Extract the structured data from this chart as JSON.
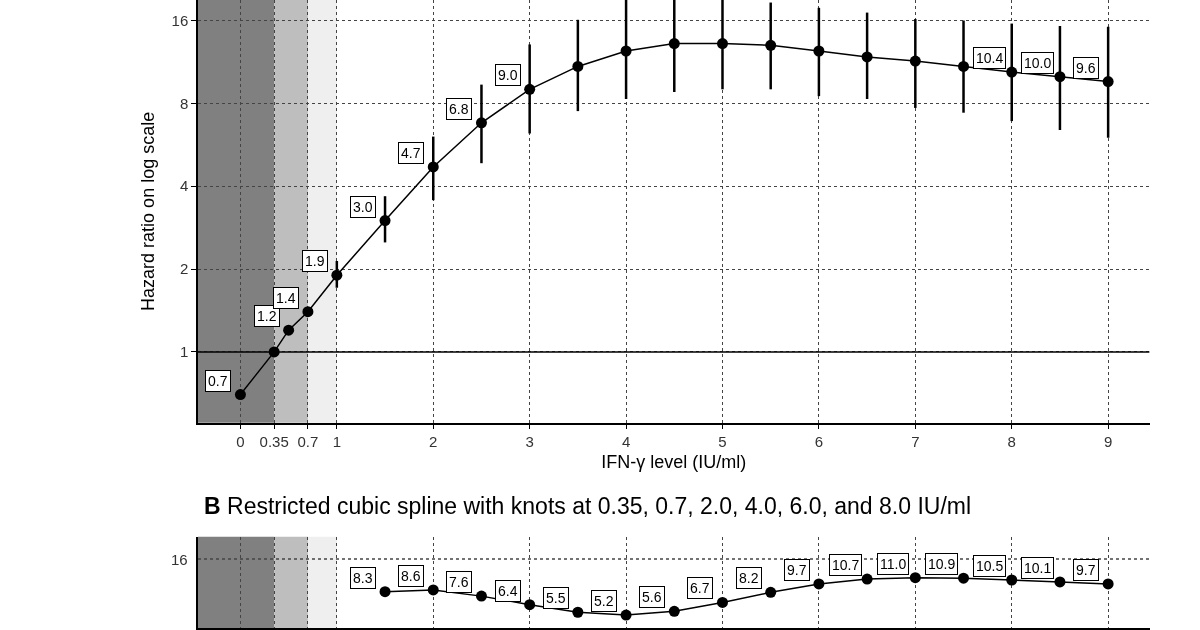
{
  "chart_data": [
    {
      "type": "line",
      "xlabel": "IFN-γ level (IU/ml)",
      "ylabel": "Hazard ratio on log scale",
      "x": [
        0,
        0.35,
        0.5,
        0.7,
        1,
        1.5,
        2,
        2.5,
        3,
        3.5,
        4,
        4.5,
        5,
        5.5,
        6,
        6.5,
        7,
        7.5,
        8,
        8.5,
        9
      ],
      "series": [
        {
          "color": "#000000",
          "values": [
            0.7,
            1.0,
            1.2,
            1.4,
            1.9,
            3.0,
            4.7,
            6.8,
            9.0,
            10.9,
            12.4,
            13.2,
            13.2,
            13.0,
            12.4,
            11.8,
            11.4,
            10.9,
            10.4,
            10.0,
            9.6
          ],
          "errors": [
            null,
            null,
            null,
            null,
            [
              1.71,
              2.14
            ],
            [
              2.5,
              3.68
            ],
            [
              3.56,
              6.06
            ],
            [
              4.85,
              9.36
            ],
            [
              6.22,
              13.1
            ],
            [
              7.5,
              16.1
            ],
            [
              8.3,
              19
            ],
            [
              8.8,
              19
            ],
            [
              9.0,
              19
            ],
            [
              9.0,
              18.6
            ],
            [
              8.5,
              17.8
            ],
            [
              8.3,
              17.1
            ],
            [
              7.7,
              16.2
            ],
            [
              7.4,
              16.0
            ],
            [
              6.9,
              15.6
            ],
            [
              6.4,
              15.3
            ],
            [
              6.0,
              15.2
            ]
          ],
          "value_labels": [
            "0.7",
            null,
            "1.2",
            "1.4",
            "1.9",
            "3.0",
            "4.7",
            "6.8",
            "9.0",
            null,
            null,
            null,
            null,
            null,
            null,
            null,
            null,
            null,
            "10.4",
            "10.0",
            "9.6"
          ]
        }
      ],
      "xlim": [
        -0.44,
        9.43
      ],
      "xticks": [
        0,
        0.35,
        0.7,
        1,
        2,
        3,
        4,
        5,
        6,
        7,
        8,
        9
      ],
      "ylim": [
        0.553,
        19
      ],
      "yticks": [
        1,
        2,
        4,
        8,
        16
      ],
      "log": "y",
      "grid": true,
      "marker": "circle",
      "line_style": "solid",
      "bands": [
        {
          "axis": "x",
          "from": -0.44,
          "to": 0.35,
          "color": "#808080"
        },
        {
          "axis": "x",
          "from": 0.35,
          "to": 0.7,
          "color": "#bebebe"
        },
        {
          "axis": "x",
          "from": 0.7,
          "to": 1,
          "color": "#efefef"
        }
      ],
      "ref_lines": [
        {
          "axis": "y",
          "value": 1,
          "color": "#000000"
        }
      ]
    },
    {
      "type": "line",
      "title": "B Restricted cubic spline with knots at 0.35, 0.7, 2.0, 4.0, 6.0, and 8.0 IU/ml",
      "x": [
        1.5,
        2,
        2.5,
        3,
        3.5,
        4,
        4.5,
        5,
        5.5,
        6,
        6.5,
        7,
        7.5,
        8,
        8.5,
        9
      ],
      "series": [
        {
          "color": "#000000",
          "values": [
            8.3,
            8.6,
            7.6,
            6.4,
            5.5,
            5.2,
            5.6,
            6.7,
            8.2,
            9.7,
            10.7,
            11.0,
            10.9,
            10.5,
            10.1,
            9.7
          ],
          "value_labels": [
            "8.3",
            "8.6",
            "7.6",
            "6.4",
            "5.5",
            "5.2",
            "5.6",
            "6.7",
            "8.2",
            "9.7",
            "10.7",
            "11.0",
            "10.9",
            "10.5",
            "10.1",
            "9.7"
          ]
        }
      ],
      "xlim": [
        -0.44,
        9.43
      ],
      "xticks": [
        0,
        0.35,
        0.7,
        1,
        2,
        3,
        4,
        5,
        6,
        7,
        8,
        9
      ],
      "ylim": [
        4,
        25
      ],
      "log": "y",
      "grid": "x",
      "marker": "circle",
      "line_style": "solid",
      "tick_labels": false,
      "bands": [
        {
          "axis": "x",
          "from": -0.44,
          "to": 0.35,
          "color": "#808080"
        },
        {
          "axis": "x",
          "from": 0.35,
          "to": 0.7,
          "color": "#bebebe"
        },
        {
          "axis": "x",
          "from": 0.7,
          "to": 1,
          "color": "#efefef"
        }
      ],
      "ref_lines": [
        {
          "axis": "y",
          "value": 16,
          "label": "16",
          "color": "#444444",
          "line_style": "dotted"
        }
      ]
    }
  ]
}
